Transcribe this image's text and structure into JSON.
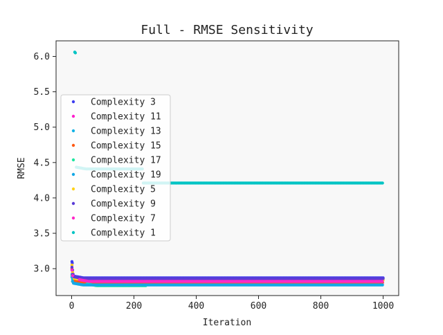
{
  "chart_data": {
    "type": "scatter",
    "title": "Full - RMSE Sensitivity",
    "xlabel": "Iteration",
    "ylabel": "RMSE",
    "xlim": [
      -50,
      1050
    ],
    "ylim": [
      2.62,
      6.22
    ],
    "xticks": [
      0,
      200,
      400,
      600,
      800,
      1000
    ],
    "yticks": [
      3.0,
      3.5,
      4.0,
      4.5,
      5.0,
      5.5,
      6.0
    ],
    "xtick_labels": [
      "0",
      "200",
      "400",
      "600",
      "800",
      "1000"
    ],
    "ytick_labels": [
      "3.0",
      "3.5",
      "4.0",
      "4.5",
      "5.0",
      "5.5",
      "6.0"
    ],
    "legend_position": "upper-left",
    "background": "#f8f8f8",
    "series": [
      {
        "name": "Complexity 3",
        "color": "#3d3df0",
        "initial": [
          [
            1,
            3.1
          ],
          [
            2,
            3.08
          ],
          [
            3,
            2.98
          ],
          [
            5,
            2.92
          ]
        ],
        "plateau_start": 8,
        "plateau": 2.87,
        "end": 1000
      },
      {
        "name": "Complexity 11",
        "color": "#ff1fce",
        "initial": [
          [
            1,
            3.05
          ],
          [
            3,
            2.95
          ],
          [
            6,
            2.9
          ]
        ],
        "plateau_start": 110,
        "plateau": 2.8,
        "end": 1000
      },
      {
        "name": "Complexity 13",
        "color": "#14b3e6",
        "initial": [
          [
            1,
            2.92
          ],
          [
            3,
            2.85
          ]
        ],
        "plateau_start": 10,
        "plateau": 2.78,
        "end": 280
      },
      {
        "name": "Complexity 15",
        "color": "#ff5a14",
        "initial": [
          [
            1,
            3.0
          ],
          [
            3,
            2.9
          ]
        ],
        "plateau_start": 10,
        "plateau": 2.81,
        "end": 1000
      },
      {
        "name": "Complexity 17",
        "color": "#1ee6a0",
        "initial": [
          [
            1,
            2.9
          ],
          [
            3,
            2.82
          ]
        ],
        "plateau_start": 50,
        "plateau": 2.76,
        "end": 240
      },
      {
        "name": "Complexity 19",
        "color": "#14a8e6",
        "initial": [
          [
            1,
            2.88
          ],
          [
            3,
            2.82
          ]
        ],
        "plateau_start": 6,
        "plateau": 2.77,
        "end": 1000
      },
      {
        "name": "Complexity 5",
        "color": "#ffd21a",
        "initial": [
          [
            1,
            3.05
          ],
          [
            3,
            2.95
          ]
        ],
        "plateau_start": 8,
        "plateau": 2.84,
        "end": 1000
      },
      {
        "name": "Complexity 9",
        "color": "#5a3cd6",
        "initial": [
          [
            1,
            3.02
          ],
          [
            3,
            2.92
          ]
        ],
        "plateau_start": 8,
        "plateau": 2.86,
        "end": 1000
      },
      {
        "name": "Complexity 7",
        "color": "#ff28c8",
        "initial": [
          [
            1,
            2.98
          ],
          [
            3,
            2.9
          ]
        ],
        "plateau_start": 25,
        "plateau": 2.82,
        "end": 1000
      },
      {
        "name": "Complexity 1",
        "color": "#00c4c4",
        "initial": [
          [
            10,
            6.06
          ],
          [
            12,
            6.05
          ]
        ],
        "plateau_start": 15,
        "plateau": 4.41,
        "second_start": 230,
        "second_plateau": 4.21,
        "end": 1000
      }
    ]
  }
}
